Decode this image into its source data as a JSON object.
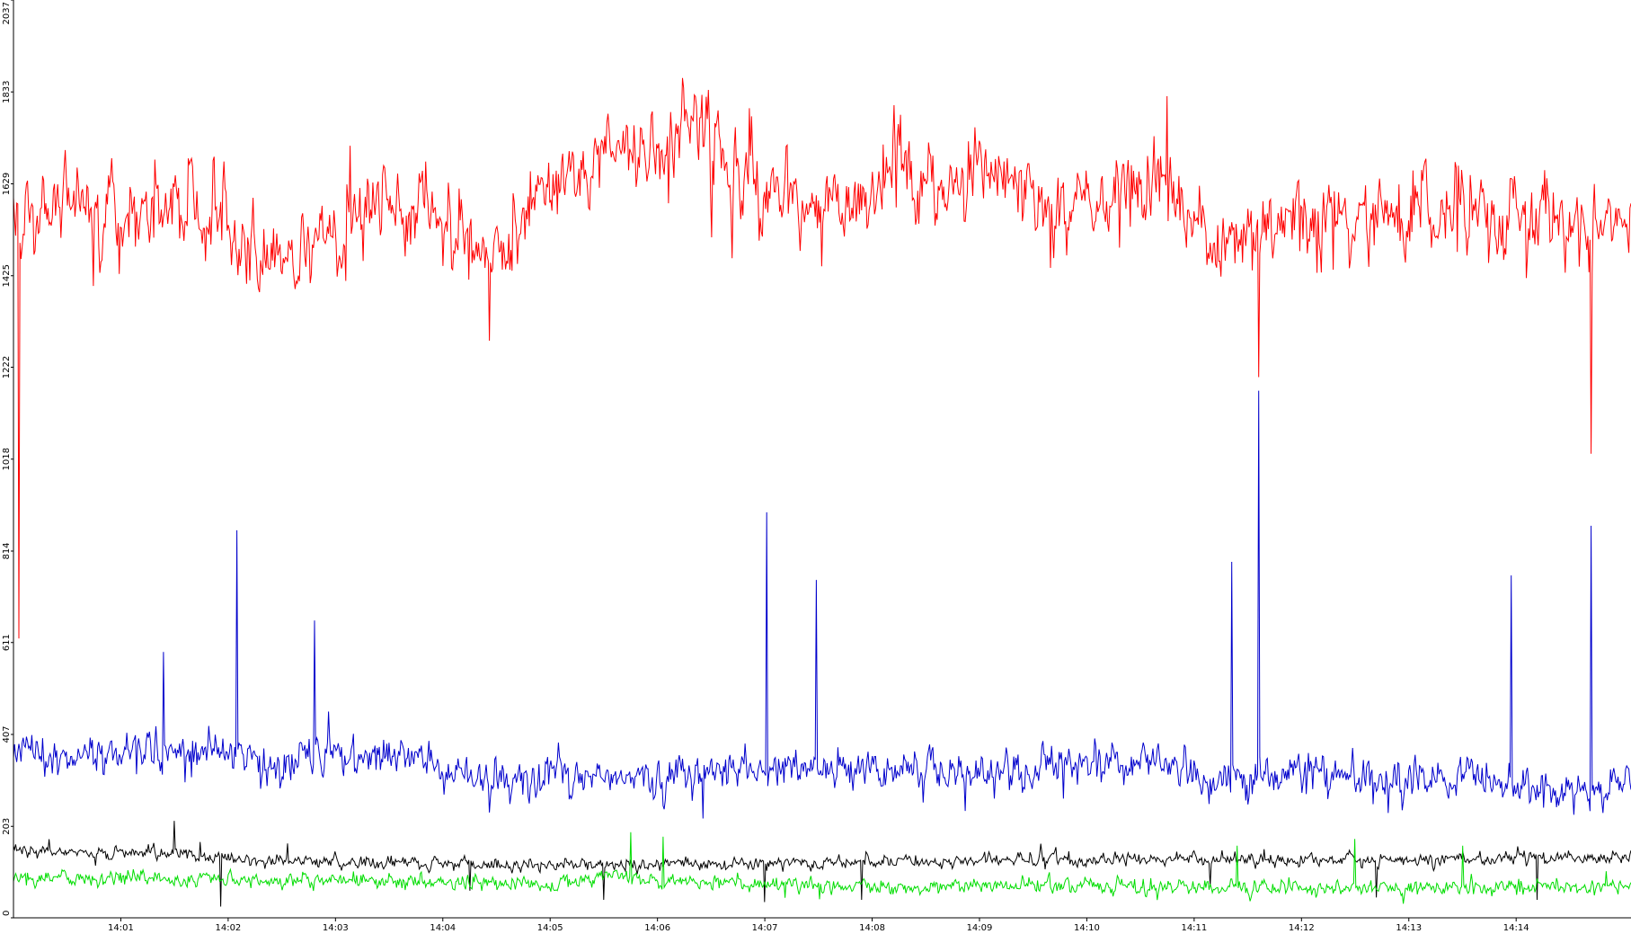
{
  "chart_data": {
    "type": "line",
    "title": "",
    "xlabel": "",
    "ylabel": "",
    "x_start": "14:00",
    "x_end": "14:15",
    "xlim_minutes": [
      0,
      15.07
    ],
    "ylim": [
      0,
      2037
    ],
    "y_ticks": [
      "0",
      "203",
      "407",
      "611",
      "814",
      "1018",
      "1222",
      "1425",
      "1629",
      "1833",
      "2037"
    ],
    "x_ticks": [
      {
        "label": "14:01",
        "minute": 1
      },
      {
        "label": "14:02",
        "minute": 2
      },
      {
        "label": "14:03",
        "minute": 3
      },
      {
        "label": "14:04",
        "minute": 4
      },
      {
        "label": "14:05",
        "minute": 5
      },
      {
        "label": "14:06",
        "minute": 6
      },
      {
        "label": "14:07",
        "minute": 7
      },
      {
        "label": "14:08",
        "minute": 8
      },
      {
        "label": "14:09",
        "minute": 9
      },
      {
        "label": "14:10",
        "minute": 10
      },
      {
        "label": "14:11",
        "minute": 11
      },
      {
        "label": "14:12",
        "minute": 12
      },
      {
        "label": "14:13",
        "minute": 13
      },
      {
        "label": "14:14",
        "minute": 14
      }
    ],
    "grid": false,
    "legend": "none",
    "samples_per_series": 1500,
    "series": [
      {
        "color": "#ff0000",
        "baseline": [
          [
            0,
            1560
          ],
          [
            0.5,
            1590
          ],
          [
            1,
            1560
          ],
          [
            1.5,
            1580
          ],
          [
            2,
            1520
          ],
          [
            2.5,
            1450
          ],
          [
            3,
            1520
          ],
          [
            3.5,
            1600
          ],
          [
            4,
            1560
          ],
          [
            4.5,
            1450
          ],
          [
            5,
            1620
          ],
          [
            5.5,
            1680
          ],
          [
            6,
            1700
          ],
          [
            6.4,
            1810
          ],
          [
            6.8,
            1630
          ],
          [
            7.2,
            1600
          ],
          [
            7.6,
            1580
          ],
          [
            8,
            1590
          ],
          [
            8.2,
            1700
          ],
          [
            8.6,
            1580
          ],
          [
            9,
            1700
          ],
          [
            9.4,
            1580
          ],
          [
            9.8,
            1560
          ],
          [
            10.2,
            1600
          ],
          [
            10.7,
            1630
          ],
          [
            11.1,
            1520
          ],
          [
            11.6,
            1480
          ],
          [
            12,
            1560
          ],
          [
            12.5,
            1560
          ],
          [
            13,
            1550
          ],
          [
            13.5,
            1570
          ],
          [
            14,
            1550
          ],
          [
            14.5,
            1540
          ],
          [
            15.07,
            1520
          ]
        ],
        "noise": 75,
        "spikes": [
          [
            0.05,
            620
          ],
          [
            11.6,
            1200
          ],
          [
            14.7,
            1030
          ]
        ]
      },
      {
        "color": "#0000cc",
        "baseline": [
          [
            0,
            360
          ],
          [
            1,
            375
          ],
          [
            2,
            370
          ],
          [
            2.5,
            350
          ],
          [
            3,
            360
          ],
          [
            3.8,
            360
          ],
          [
            4,
            320
          ],
          [
            4.5,
            310
          ],
          [
            5,
            320
          ],
          [
            5.5,
            300
          ],
          [
            6,
            310
          ],
          [
            6.5,
            330
          ],
          [
            7,
            320
          ],
          [
            7.5,
            340
          ],
          [
            8,
            325
          ],
          [
            8.5,
            330
          ],
          [
            9,
            315
          ],
          [
            9.5,
            330
          ],
          [
            10,
            340
          ],
          [
            10.6,
            350
          ],
          [
            11,
            305
          ],
          [
            11.5,
            310
          ],
          [
            12,
            330
          ],
          [
            12.5,
            320
          ],
          [
            13,
            300
          ],
          [
            13.5,
            320
          ],
          [
            14,
            290
          ],
          [
            14.5,
            275
          ],
          [
            15.07,
            300
          ]
        ],
        "noise": 38,
        "spikes": [
          [
            1.4,
            590
          ],
          [
            2.08,
            860
          ],
          [
            2.8,
            660
          ],
          [
            7.02,
            900
          ],
          [
            7.48,
            750
          ],
          [
            11.35,
            790
          ],
          [
            11.6,
            1170
          ],
          [
            13.95,
            760
          ],
          [
            14.7,
            870
          ]
        ]
      },
      {
        "color": "#000000",
        "baseline": [
          [
            0,
            150
          ],
          [
            1,
            145
          ],
          [
            1.5,
            140
          ],
          [
            2,
            128
          ],
          [
            3,
            125
          ],
          [
            4,
            120
          ],
          [
            5,
            118
          ],
          [
            6,
            120
          ],
          [
            7,
            122
          ],
          [
            8,
            125
          ],
          [
            9,
            127
          ],
          [
            10,
            130
          ],
          [
            11,
            130
          ],
          [
            12,
            128
          ],
          [
            13,
            130
          ],
          [
            14,
            132
          ],
          [
            15.07,
            135
          ]
        ],
        "noise": 12,
        "spikes": [
          [
            1.5,
            215
          ],
          [
            2.55,
            165
          ],
          [
            1.93,
            25
          ],
          [
            4.25,
            60
          ],
          [
            5.5,
            40
          ],
          [
            7,
            35
          ],
          [
            7.9,
            40
          ],
          [
            11.15,
            70
          ],
          [
            12.7,
            45
          ],
          [
            14.2,
            40
          ]
        ]
      },
      {
        "color": "#00dd00",
        "baseline": [
          [
            0,
            90
          ],
          [
            2,
            85
          ],
          [
            4,
            80
          ],
          [
            5,
            75
          ],
          [
            5.6,
            95
          ],
          [
            6,
            80
          ],
          [
            8,
            70
          ],
          [
            10,
            70
          ],
          [
            12,
            65
          ],
          [
            14,
            68
          ],
          [
            15.07,
            75
          ]
        ],
        "noise": 14,
        "spikes": [
          [
            5.75,
            190
          ],
          [
            6.05,
            180
          ],
          [
            11.4,
            160
          ],
          [
            12.5,
            175
          ],
          [
            13.5,
            160
          ]
        ]
      }
    ]
  }
}
